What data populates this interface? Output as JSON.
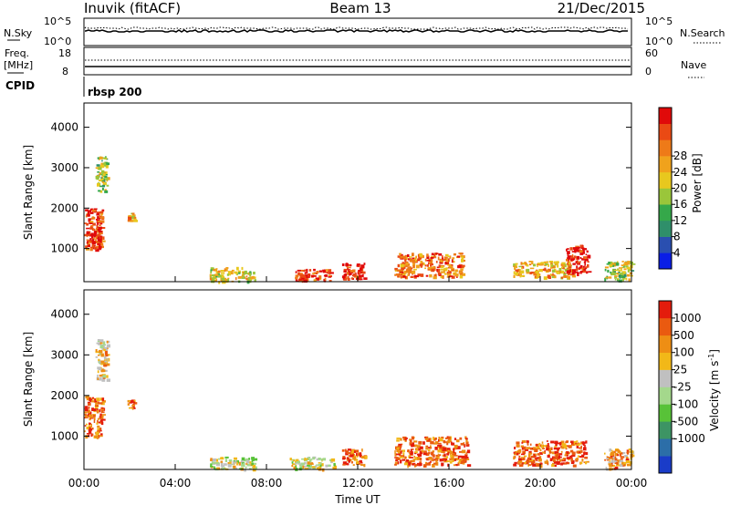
{
  "header": {
    "station": "Inuvik (fitACF)",
    "beam": "Beam 13",
    "date": "21/Dec/2015"
  },
  "top_strip": {
    "left_label": "N.Sky",
    "right_label": "N.Search",
    "y_top": "10^5",
    "y_bottom": "10^0"
  },
  "freq_strip": {
    "left_label_1": "Freq.",
    "left_label_2": "[MHz]",
    "y_left_top": "18",
    "y_left_bottom": "8",
    "right_label": "Nave",
    "y_right_top": "60",
    "y_right_bottom": "0"
  },
  "cpid": {
    "label": "CPID",
    "value": "rbsp 200"
  },
  "chart_data": [
    {
      "type": "heatmap",
      "name": "power-panel",
      "ylabel": "Slant Range [km]",
      "xlabel": "",
      "xlim_hours": [
        0,
        24
      ],
      "ylim": [
        180,
        4600
      ],
      "yticks": [
        1000,
        2000,
        3000,
        4000
      ],
      "colorbar": {
        "label": "Power [dB]",
        "ticks": [
          "4",
          "8",
          "12",
          "16",
          "20",
          "24",
          "28"
        ],
        "colors": [
          "#0a1ee6",
          "#2a4fb0",
          "#2f8f6a",
          "#35a84a",
          "#9ac63a",
          "#e8c81e",
          "#f0a21c",
          "#ee7a18",
          "#ea4a14",
          "#e00a0a"
        ]
      },
      "regions": [
        {
          "x": [
            0.0,
            0.8
          ],
          "y": [
            1000,
            2000
          ],
          "level": 8
        },
        {
          "x": [
            0.3,
            0.7
          ],
          "y": [
            1000,
            1500
          ],
          "level": 9
        },
        {
          "x": [
            0.5,
            1.0
          ],
          "y": [
            2400,
            3300
          ],
          "level": 4
        },
        {
          "x": [
            1.9,
            2.2
          ],
          "y": [
            1700,
            1900
          ],
          "level": 6
        },
        {
          "x": [
            5.5,
            7.5
          ],
          "y": [
            200,
            550
          ],
          "level": 5
        },
        {
          "x": [
            9.2,
            10.8
          ],
          "y": [
            200,
            500
          ],
          "level": 8
        },
        {
          "x": [
            11.3,
            12.3
          ],
          "y": [
            250,
            650
          ],
          "level": 9
        },
        {
          "x": [
            13.6,
            16.6
          ],
          "y": [
            300,
            900
          ],
          "level": 7
        },
        {
          "x": [
            18.8,
            21.4
          ],
          "y": [
            300,
            700
          ],
          "level": 6
        },
        {
          "x": [
            21.1,
            22.1
          ],
          "y": [
            400,
            1100
          ],
          "level": 9
        },
        {
          "x": [
            22.8,
            24.0
          ],
          "y": [
            200,
            700
          ],
          "level": 4
        }
      ]
    },
    {
      "type": "heatmap",
      "name": "velocity-panel",
      "ylabel": "Slant Range [km]",
      "xlabel": "Time UT",
      "xlim_hours": [
        0,
        24
      ],
      "xticks": [
        "00:00",
        "04:00",
        "08:00",
        "12:00",
        "16:00",
        "20:00",
        "00:00"
      ],
      "ylim": [
        180,
        4600
      ],
      "yticks": [
        1000,
        2000,
        3000,
        4000
      ],
      "colorbar": {
        "label": "Velocity [m s^-1]",
        "ticks": [
          "1000",
          "500",
          "100",
          "25",
          "-25",
          "-100",
          "-500",
          "-1000"
        ],
        "colors": [
          "#1a3cc8",
          "#2c6ea8",
          "#3d9464",
          "#58c238",
          "#a4d88c",
          "#c0c0c0",
          "#f2b818",
          "#ee8e14",
          "#ea5a10",
          "#e41c0c"
        ]
      },
      "regions": [
        {
          "x": [
            0.0,
            0.8
          ],
          "y": [
            1000,
            2000
          ],
          "level": 8
        },
        {
          "x": [
            0.5,
            1.0
          ],
          "y": [
            2400,
            3400
          ],
          "level": 6
        },
        {
          "x": [
            1.9,
            2.2
          ],
          "y": [
            1700,
            1900
          ],
          "level": 8
        },
        {
          "x": [
            5.5,
            7.5
          ],
          "y": [
            200,
            500
          ],
          "level": 5
        },
        {
          "x": [
            9.0,
            11.0
          ],
          "y": [
            200,
            500
          ],
          "level": 5
        },
        {
          "x": [
            11.3,
            12.3
          ],
          "y": [
            300,
            700
          ],
          "level": 8
        },
        {
          "x": [
            13.6,
            16.8
          ],
          "y": [
            300,
            1000
          ],
          "level": 8
        },
        {
          "x": [
            18.8,
            22.0
          ],
          "y": [
            300,
            900
          ],
          "level": 8
        },
        {
          "x": [
            22.8,
            24.0
          ],
          "y": [
            200,
            700
          ],
          "level": 7
        }
      ]
    }
  ]
}
